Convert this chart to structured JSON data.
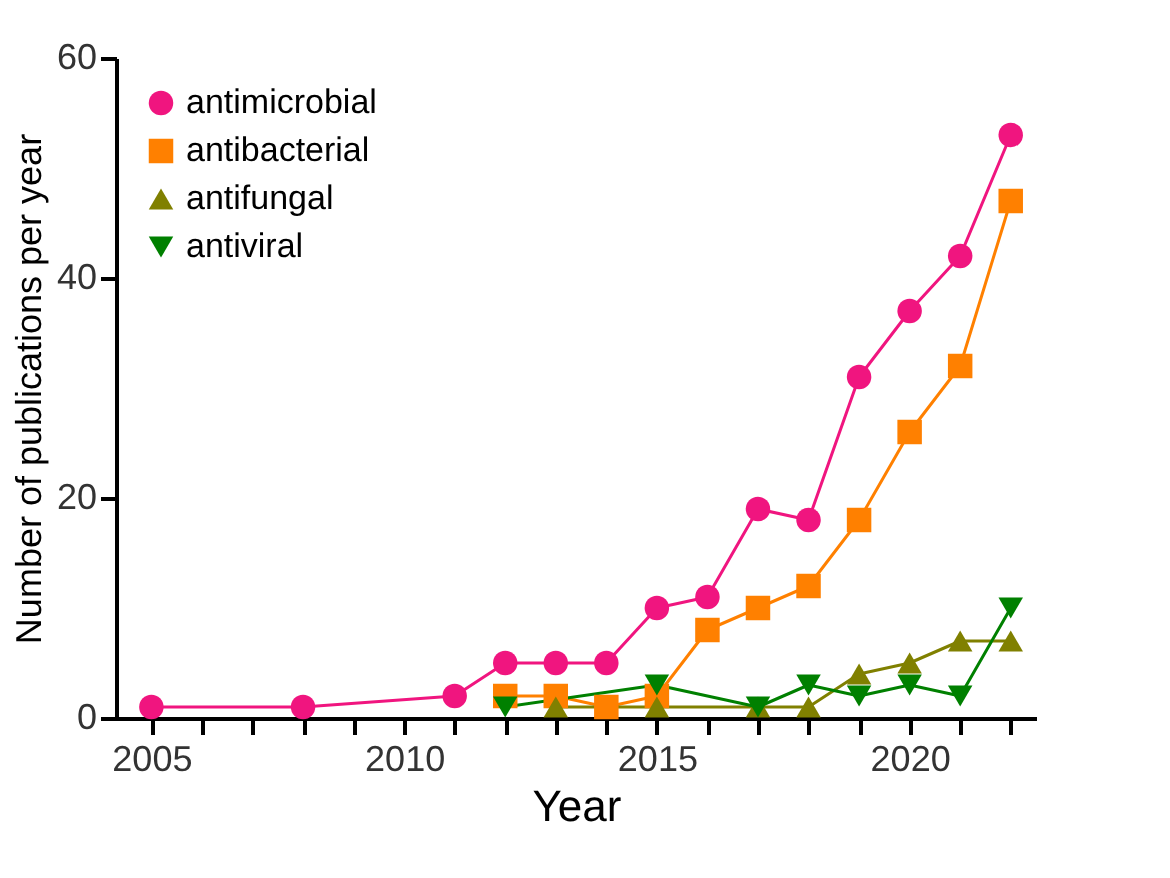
{
  "chart_data": {
    "type": "line",
    "xlabel": "Year",
    "ylabel": "Number of publications per year",
    "xlim": [
      2004.3,
      2022.5
    ],
    "ylim": [
      0,
      60
    ],
    "xticks": [
      2005,
      {
        "value": 2006,
        "label": null
      },
      {
        "value": 2007,
        "label": null
      },
      {
        "value": 2008,
        "label": null
      },
      {
        "value": 2009,
        "label": null
      },
      2010,
      {
        "value": 2011,
        "label": null
      },
      {
        "value": 2012,
        "label": null
      },
      {
        "value": 2013,
        "label": null
      },
      {
        "value": 2014,
        "label": null
      },
      2015,
      {
        "value": 2016,
        "label": null
      },
      {
        "value": 2017,
        "label": null
      },
      {
        "value": 2018,
        "label": null
      },
      {
        "value": 2019,
        "label": null
      },
      2020,
      {
        "value": 2021,
        "label": null
      },
      {
        "value": 2022,
        "label": null
      }
    ],
    "yticks": [
      0,
      20,
      40,
      60
    ],
    "grid": false,
    "legend": "top left",
    "series": [
      {
        "name": "antimicrobial",
        "color": "#f0157f",
        "marker": "circle",
        "x": [
          2005,
          2008,
          2011,
          2012,
          2013,
          2014,
          2015,
          2016,
          2017,
          2018,
          2019,
          2020,
          2021,
          2022
        ],
        "values": [
          1,
          1,
          2,
          5,
          5,
          5,
          10,
          11,
          19,
          18,
          31,
          37,
          42,
          53
        ]
      },
      {
        "name": "antibacterial",
        "color": "#ff8000",
        "marker": "square",
        "x": [
          2012,
          2013,
          2014,
          2015,
          2016,
          2017,
          2018,
          2019,
          2020,
          2021,
          2022
        ],
        "values": [
          2,
          2,
          1,
          2,
          8,
          10,
          12,
          18,
          26,
          32,
          47
        ]
      },
      {
        "name": "antifungal",
        "color": "#808000",
        "marker": "triangle",
        "x": [
          2013,
          2015,
          2017,
          2018,
          2019,
          2020,
          2021,
          2022
        ],
        "values": [
          1,
          1,
          1,
          1,
          4,
          5,
          7,
          7
        ]
      },
      {
        "name": "antiviral",
        "color": "#008000",
        "marker": "triangle-down",
        "x": [
          2012,
          2015,
          2017,
          2018,
          2019,
          2020,
          2021,
          2022
        ],
        "values": [
          1,
          3,
          1,
          3,
          2,
          3,
          2,
          10
        ]
      }
    ]
  }
}
